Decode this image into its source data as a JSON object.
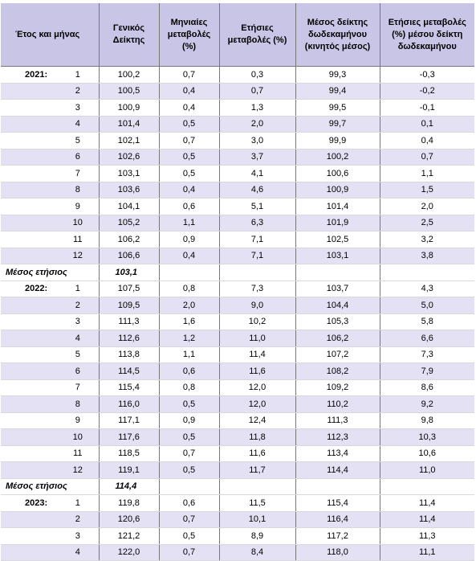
{
  "header": {
    "columns": [
      "Έτος και μήνας",
      "Γενικός Δείκτης",
      "Μηνιαίες μεταβολές (%)",
      "Ετήσιες μεταβολές (%)",
      "Μέσος δείκτης δωδεκαμήνου (κινητός μέσος)",
      "Ετήσιες μεταβολές (%) μέσου δείκτη δωδεκαμήνου"
    ]
  },
  "groups": [
    {
      "year": "2021:",
      "rows": [
        [
          "1",
          "100,2",
          "0,7",
          "0,3",
          "99,3",
          "-0,3"
        ],
        [
          "2",
          "100,5",
          "0,4",
          "0,7",
          "99,4",
          "-0,2"
        ],
        [
          "3",
          "100,9",
          "0,4",
          "1,3",
          "99,5",
          "-0,1"
        ],
        [
          "4",
          "101,4",
          "0,5",
          "2,0",
          "99,7",
          "0,1"
        ],
        [
          "5",
          "102,1",
          "0,7",
          "3,0",
          "99,9",
          "0,4"
        ],
        [
          "6",
          "102,6",
          "0,5",
          "3,7",
          "100,2",
          "0,7"
        ],
        [
          "7",
          "103,1",
          "0,5",
          "4,1",
          "100,6",
          "1,1"
        ],
        [
          "8",
          "103,6",
          "0,4",
          "4,6",
          "100,9",
          "1,5"
        ],
        [
          "9",
          "104,1",
          "0,6",
          "5,1",
          "101,4",
          "2,0"
        ],
        [
          "10",
          "105,2",
          "1,1",
          "6,3",
          "101,9",
          "2,5"
        ],
        [
          "11",
          "106,2",
          "0,9",
          "7,1",
          "102,5",
          "3,2"
        ],
        [
          "12",
          "106,6",
          "0,4",
          "7,1",
          "103,1",
          "3,8"
        ]
      ],
      "mean_label": "Μέσος ετήσιος",
      "mean_value": "103,1"
    },
    {
      "year": "2022:",
      "rows": [
        [
          "1",
          "107,5",
          "0,8",
          "7,3",
          "103,7",
          "4,3"
        ],
        [
          "2",
          "109,5",
          "2,0",
          "9,0",
          "104,4",
          "5,0"
        ],
        [
          "3",
          "111,3",
          "1,6",
          "10,2",
          "105,3",
          "5,8"
        ],
        [
          "4",
          "112,6",
          "1,2",
          "11,0",
          "106,2",
          "6,6"
        ],
        [
          "5",
          "113,8",
          "1,1",
          "11,4",
          "107,2",
          "7,3"
        ],
        [
          "6",
          "114,5",
          "0,6",
          "11,6",
          "108,2",
          "7,9"
        ],
        [
          "7",
          "115,4",
          "0,8",
          "12,0",
          "109,2",
          "8,6"
        ],
        [
          "8",
          "116,0",
          "0,5",
          "12,0",
          "110,2",
          "9,2"
        ],
        [
          "9",
          "117,1",
          "0,9",
          "12,4",
          "111,3",
          "9,8"
        ],
        [
          "10",
          "117,6",
          "0,5",
          "11,8",
          "112,3",
          "10,3"
        ],
        [
          "11",
          "118,5",
          "0,7",
          "11,6",
          "113,4",
          "10,6"
        ],
        [
          "12",
          "119,1",
          "0,5",
          "11,7",
          "114,4",
          "11,0"
        ]
      ],
      "mean_label": "Μέσος ετήσιος",
      "mean_value": "114,4"
    },
    {
      "year": "2023:",
      "rows": [
        [
          "1",
          "119,8",
          "0,6",
          "11,5",
          "115,4",
          "11,4"
        ],
        [
          "2",
          "120,6",
          "0,7",
          "10,1",
          "116,4",
          "11,4"
        ],
        [
          "3",
          "121,2",
          "0,5",
          "8,9",
          "117,2",
          "11,3"
        ],
        [
          "4",
          "122,0",
          "0,7",
          "8,4",
          "118,0",
          "11,1"
        ]
      ]
    }
  ]
}
